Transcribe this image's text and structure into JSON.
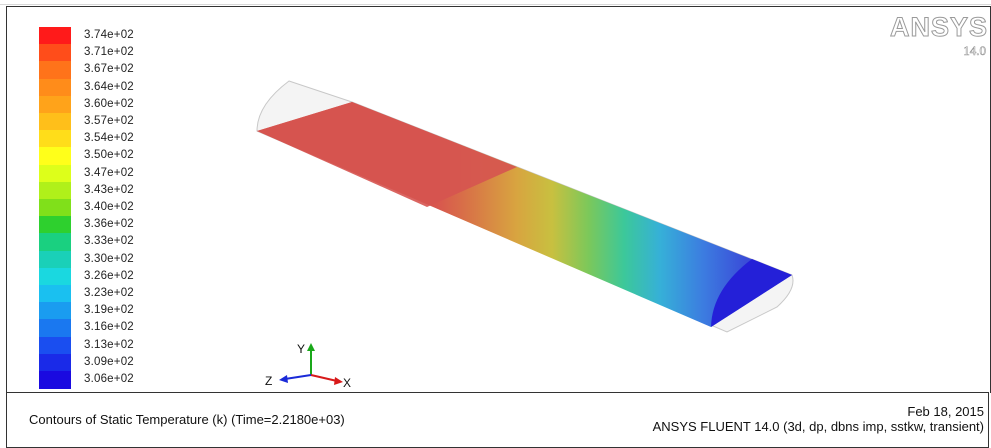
{
  "legend": {
    "title": "",
    "labels": [
      "3.74e+02",
      "3.71e+02",
      "3.67e+02",
      "3.64e+02",
      "3.60e+02",
      "3.57e+02",
      "3.54e+02",
      "3.50e+02",
      "3.47e+02",
      "3.43e+02",
      "3.40e+02",
      "3.36e+02",
      "3.33e+02",
      "3.30e+02",
      "3.26e+02",
      "3.23e+02",
      "3.19e+02",
      "3.16e+02",
      "3.13e+02",
      "3.09e+02",
      "3.06e+02"
    ],
    "colors": [
      "#ff1a1a",
      "#ff4d1a",
      "#ff731a",
      "#ff8c1a",
      "#ffa31a",
      "#ffbf1a",
      "#ffdd1a",
      "#ffff1a",
      "#ddff1a",
      "#b0f01a",
      "#80e01a",
      "#2ed02e",
      "#1ad080",
      "#1ad0b8",
      "#1ad8e0",
      "#1ac0f0",
      "#1a9cf0",
      "#1a78f0",
      "#1a4ef0",
      "#1a2ae8",
      "#1a0ae0"
    ]
  },
  "logo": {
    "name": "ANSYS",
    "version": "14.0"
  },
  "triad": {
    "x": "X",
    "y": "Y",
    "z": "Z"
  },
  "footer": {
    "title": "Contours of Static Temperature (k)  (Time=2.2180e+03)",
    "date": "Feb 18, 2015",
    "solver": "ANSYS FLUENT 14.0 (3d, dp, dbns imp, sstkw, transient)"
  }
}
